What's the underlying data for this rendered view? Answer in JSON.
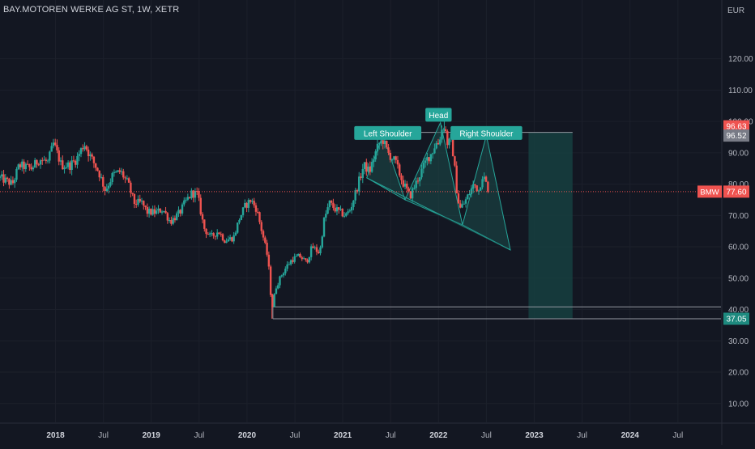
{
  "header": {
    "symbol_title": "BAY.MOTOREN WERKE AG ST, 1W, XETR",
    "currency": "EUR"
  },
  "colors": {
    "background": "#131722",
    "bullish": "#26a69a",
    "bearish": "#ef5350",
    "pattern_fill": "#1b4d4b",
    "pattern_line": "#26a69a",
    "target_zone": "#16403f",
    "axis_text": "#b2b5be",
    "level_line": "#9598a1",
    "current_price_line": "#ef5350"
  },
  "chart_data": {
    "type": "candlestick",
    "title": "BAY.MOTOREN WERKE AG ST, 1W, XETR",
    "timeframe": "1W",
    "exchange": "XETR",
    "currency": "EUR",
    "x_ticks": [
      "2018",
      "Jul",
      "2019",
      "Jul",
      "2020",
      "Jul",
      "2021",
      "Jul",
      "2022",
      "Jul",
      "2023",
      "Jul",
      "2024",
      "Jul"
    ],
    "x_tick_dates": [
      2018.0,
      2018.5,
      2019.0,
      2019.5,
      2020.0,
      2020.5,
      2021.0,
      2021.5,
      2022.0,
      2022.5,
      2023.0,
      2023.5,
      2024.0,
      2024.5
    ],
    "xlim": [
      2017.42,
      2024.95
    ],
    "y_ticks": [
      10,
      20,
      30,
      40,
      50,
      60,
      70,
      80,
      90,
      100,
      110,
      120
    ],
    "y_tick_labels": [
      "10.00",
      "20.00",
      "30.00",
      "40.00",
      "50.00",
      "60.00",
      "70.00",
      "80.00",
      "90.00",
      "100.00",
      "110.00",
      "120.00"
    ],
    "ylim": [
      4,
      131
    ],
    "price_path": [
      [
        2017.42,
        82
      ],
      [
        2017.55,
        80
      ],
      [
        2017.62,
        86
      ],
      [
        2017.75,
        85
      ],
      [
        2017.83,
        88
      ],
      [
        2017.92,
        87
      ],
      [
        2017.98,
        93
      ],
      [
        2018.06,
        86
      ],
      [
        2018.15,
        86
      ],
      [
        2018.22,
        88
      ],
      [
        2018.3,
        93
      ],
      [
        2018.36,
        89
      ],
      [
        2018.45,
        84
      ],
      [
        2018.52,
        78
      ],
      [
        2018.6,
        83
      ],
      [
        2018.68,
        84
      ],
      [
        2018.76,
        80
      ],
      [
        2018.82,
        74
      ],
      [
        2018.9,
        74
      ],
      [
        2018.96,
        71
      ],
      [
        2019.05,
        71
      ],
      [
        2019.12,
        72
      ],
      [
        2019.2,
        68
      ],
      [
        2019.3,
        71
      ],
      [
        2019.35,
        74
      ],
      [
        2019.42,
        77
      ],
      [
        2019.48,
        77
      ],
      [
        2019.55,
        66
      ],
      [
        2019.62,
        63
      ],
      [
        2019.7,
        65
      ],
      [
        2019.77,
        62
      ],
      [
        2019.86,
        63
      ],
      [
        2019.92,
        69
      ],
      [
        2019.98,
        73
      ],
      [
        2020.04,
        75
      ],
      [
        2020.1,
        72
      ],
      [
        2020.17,
        63
      ],
      [
        2020.22,
        56
      ],
      [
        2020.26,
        40
      ],
      [
        2020.3,
        47
      ],
      [
        2020.36,
        51
      ],
      [
        2020.42,
        54
      ],
      [
        2020.47,
        56
      ],
      [
        2020.55,
        57
      ],
      [
        2020.62,
        55
      ],
      [
        2020.68,
        60
      ],
      [
        2020.76,
        58
      ],
      [
        2020.8,
        68
      ],
      [
        2020.86,
        74
      ],
      [
        2020.92,
        72
      ],
      [
        2020.97,
        71
      ],
      [
        2021.03,
        70
      ],
      [
        2021.08,
        72
      ],
      [
        2021.12,
        76
      ],
      [
        2021.17,
        81
      ],
      [
        2021.22,
        86
      ],
      [
        2021.28,
        84
      ],
      [
        2021.33,
        89
      ],
      [
        2021.38,
        93
      ],
      [
        2021.42,
        94
      ],
      [
        2021.47,
        90
      ],
      [
        2021.55,
        87
      ],
      [
        2021.62,
        81
      ],
      [
        2021.7,
        76
      ],
      [
        2021.76,
        80
      ],
      [
        2021.82,
        84
      ],
      [
        2021.88,
        88
      ],
      [
        2021.93,
        90
      ],
      [
        2021.97,
        93
      ],
      [
        2022.0,
        93
      ],
      [
        2022.03,
        97
      ],
      [
        2022.06,
        99
      ],
      [
        2022.1,
        92
      ],
      [
        2022.13,
        95
      ],
      [
        2022.16,
        88
      ],
      [
        2022.19,
        78
      ],
      [
        2022.22,
        72
      ],
      [
        2022.27,
        74
      ],
      [
        2022.32,
        77
      ],
      [
        2022.37,
        80
      ],
      [
        2022.42,
        78
      ],
      [
        2022.46,
        83
      ],
      [
        2022.5,
        80
      ],
      [
        2022.53,
        77.6
      ]
    ],
    "annotations": [
      {
        "text": "Left Shoulder",
        "x": 2021.47,
        "y": 96.2
      },
      {
        "text": "Head",
        "x": 2022.0,
        "y": 102.0
      },
      {
        "text": "Right Shoulder",
        "x": 2022.5,
        "y": 96.2
      }
    ],
    "pattern_lines": {
      "left_shoulder_triangle": [
        [
          2021.25,
          82
        ],
        [
          2021.42,
          95.5
        ],
        [
          2021.65,
          75
        ]
      ],
      "head_triangle": [
        [
          2021.65,
          75
        ],
        [
          2022.02,
          99.6
        ],
        [
          2022.25,
          67
        ]
      ],
      "right_shoulder_triangle": [
        [
          2022.25,
          67
        ],
        [
          2022.5,
          95.5
        ],
        [
          2022.75,
          59
        ]
      ],
      "neckline_and_projection": [
        [
          2021.25,
          82
        ],
        [
          2022.75,
          59
        ]
      ]
    },
    "horizontal_levels": [
      {
        "price": 96.52,
        "from": 2021.42,
        "to": 2023.4
      },
      {
        "price": 40.8,
        "from": 2020.27,
        "to": 2024.95
      },
      {
        "price": 37.05,
        "from": 2020.27,
        "to": 2024.95
      }
    ],
    "target_zone": {
      "x_from": 2022.94,
      "x_to": 2023.4,
      "y_from": 37.05,
      "y_to": 96.52
    },
    "current_price_line": 77.6,
    "price_labels": [
      {
        "text": "96.63",
        "price": 96.63,
        "style": "red"
      },
      {
        "text": "96.52",
        "price": 96.52,
        "style": "gray"
      },
      {
        "text": "77.60",
        "price": 77.6,
        "style": "red",
        "tag": "BMW"
      },
      {
        "text": "37.05",
        "price": 37.05,
        "style": "teal"
      }
    ]
  }
}
